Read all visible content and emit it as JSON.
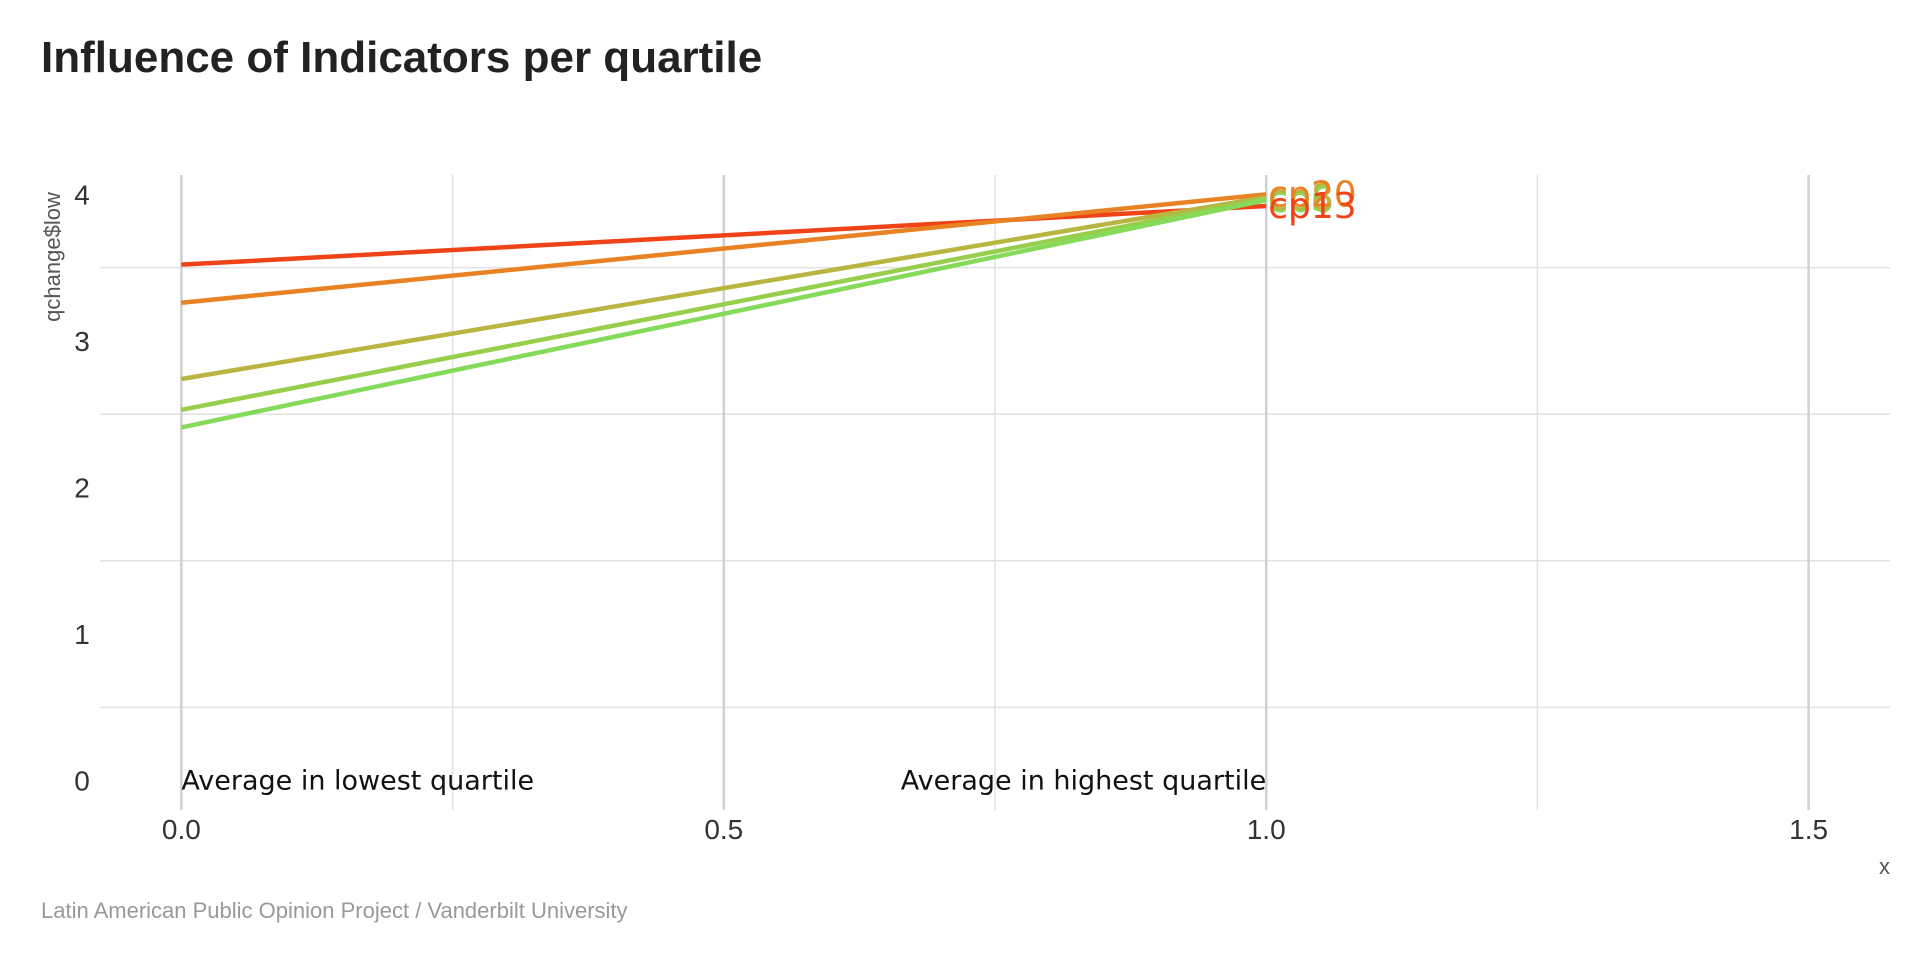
{
  "chart_data": {
    "type": "line",
    "title": "Influence of Indicators per quartile",
    "ylabel": "qchange$low",
    "xlabel": "x",
    "xlim": [
      -0.075,
      1.575
    ],
    "ylim": [
      -0.2,
      4.2
    ],
    "x_ticks": [
      {
        "value": 0.0,
        "label": "0.0"
      },
      {
        "value": 0.5,
        "label": "0.5"
      },
      {
        "value": 1.0,
        "label": "1.0"
      },
      {
        "value": 1.5,
        "label": "1.5"
      }
    ],
    "y_ticks": [
      {
        "value": 0,
        "label": "0"
      },
      {
        "value": 1,
        "label": "1"
      },
      {
        "value": 2,
        "label": "2"
      },
      {
        "value": 3,
        "label": "3"
      },
      {
        "value": 4,
        "label": "4"
      }
    ],
    "grid": true,
    "series": [
      {
        "name": "cp13",
        "color": "#f04418",
        "x": [
          0,
          1
        ],
        "y": [
          3.52,
          3.92
        ]
      },
      {
        "name": "cp20",
        "color": "#e88224",
        "x": [
          0,
          1
        ],
        "y": [
          3.26,
          4.0
        ]
      },
      {
        "name": "cp8",
        "color": "#b9b541",
        "x": [
          0,
          1
        ],
        "y": [
          2.74,
          3.98
        ]
      },
      {
        "name": "cp5",
        "color": "#97cf4c",
        "x": [
          0,
          1
        ],
        "y": [
          2.53,
          3.97
        ]
      },
      {
        "name": "cp6",
        "color": "#86da5a",
        "x": [
          0,
          1
        ],
        "y": [
          2.41,
          3.96
        ]
      }
    ],
    "annotations": [
      {
        "text": "Average in lowest quartile",
        "x": 0.0,
        "y": 0,
        "anchor": "start"
      },
      {
        "text": "Average in highest quartile",
        "x": 1.0,
        "y": 0,
        "anchor": "end"
      }
    ]
  },
  "caption": "Latin American Public Opinion Project / Vanderbilt University"
}
